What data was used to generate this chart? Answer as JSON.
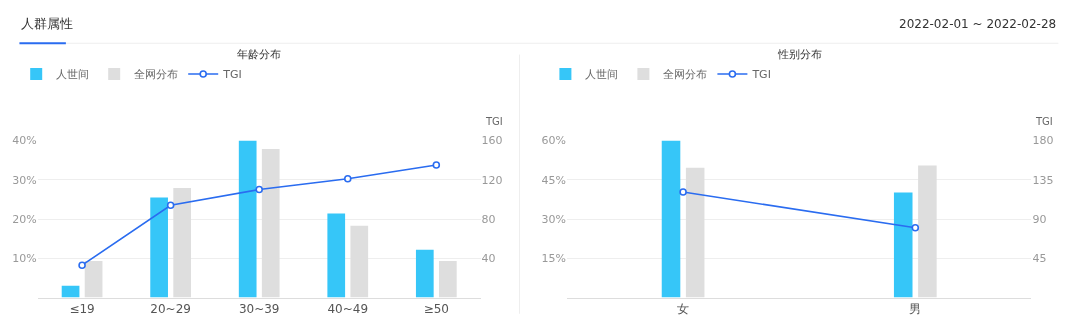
{
  "chart_data": [
    {
      "type": "bar",
      "title": "年龄分布",
      "annotations": [
        "人群属性",
        "2022-02-01 ~ 2022-02-28"
      ],
      "categories": [
        "≤19",
        "20~29",
        "30~39",
        "40~49",
        "≥50"
      ],
      "series": [
        {
          "name": "人世间",
          "color": "#36c6f8",
          "values": [
            3.0,
            25.5,
            40,
            21.4,
            12.2
          ]
        },
        {
          "name": "全网分布",
          "color": "#dedede",
          "values": [
            9.3,
            27.9,
            37.8,
            18.3,
            9.3
          ]
        },
        {
          "name": "TGI",
          "type": "line",
          "axis": "y2",
          "color": "#2a6cf0",
          "values": [
            33,
            94,
            110,
            121,
            135
          ]
        }
      ],
      "ylim": [
        0,
        40
      ],
      "yticks": [
        {
          "value": 10,
          "label": "10%"
        },
        {
          "value": 20,
          "label": "20%"
        },
        {
          "value": 30,
          "label": "30%"
        },
        {
          "value": 40,
          "label": "40%"
        }
      ],
      "y2lim": [
        0,
        160
      ],
      "y2ticks": [
        40,
        80,
        120,
        160
      ],
      "y2label": "TGI",
      "grid": "y",
      "legend": "top left",
      "marker": "circle"
    },
    {
      "type": "bar",
      "title": "性别分布",
      "categories": [
        "女",
        "男"
      ],
      "series": [
        {
          "name": "人世间",
          "color": "#36c6f8",
          "values": [
            60,
            40.1
          ]
        },
        {
          "name": "全网分布",
          "color": "#dedede",
          "values": [
            49.6,
            50.4
          ]
        },
        {
          "name": "TGI",
          "type": "line",
          "axis": "y2",
          "color": "#2a6cf0",
          "values": [
            121,
            80
          ]
        }
      ],
      "ylim": [
        0,
        60
      ],
      "yticks": [
        {
          "value": 15,
          "label": "15%"
        },
        {
          "value": 30,
          "label": "30%"
        },
        {
          "value": 45,
          "label": "45%"
        },
        {
          "value": 60,
          "label": "60%"
        }
      ],
      "y2lim": [
        0,
        180
      ],
      "y2ticks": [
        45,
        90,
        135,
        180
      ],
      "y2label": "TGI",
      "grid": "y",
      "legend": "top left",
      "marker": "circle"
    }
  ]
}
